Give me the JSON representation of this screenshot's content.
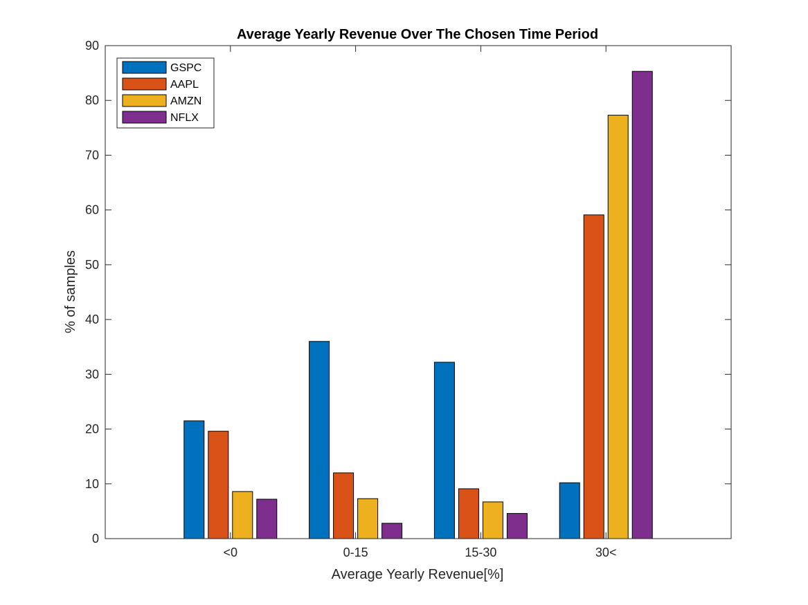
{
  "chart_data": {
    "type": "bar",
    "title": "Average Yearly Revenue Over The Chosen Time Period",
    "xlabel": "Average Yearly Revenue[%]",
    "ylabel": "% of samples",
    "categories": [
      "<0",
      "0-15",
      "15-30",
      "30<"
    ],
    "ylim": [
      0,
      90
    ],
    "yticks": [
      0,
      10,
      20,
      30,
      40,
      50,
      60,
      70,
      80,
      90
    ],
    "grid": false,
    "legend_position": "top-left",
    "series": [
      {
        "name": "GSPC",
        "color": "#0072BD",
        "values": [
          21.5,
          36.0,
          32.2,
          10.2
        ]
      },
      {
        "name": "AAPL",
        "color": "#D95319",
        "values": [
          19.6,
          12.0,
          9.1,
          59.1
        ]
      },
      {
        "name": "AMZN",
        "color": "#EDB120",
        "values": [
          8.6,
          7.3,
          6.7,
          77.3
        ]
      },
      {
        "name": "NFLX",
        "color": "#7E2F8E",
        "values": [
          7.2,
          2.8,
          4.6,
          85.3
        ]
      }
    ]
  }
}
